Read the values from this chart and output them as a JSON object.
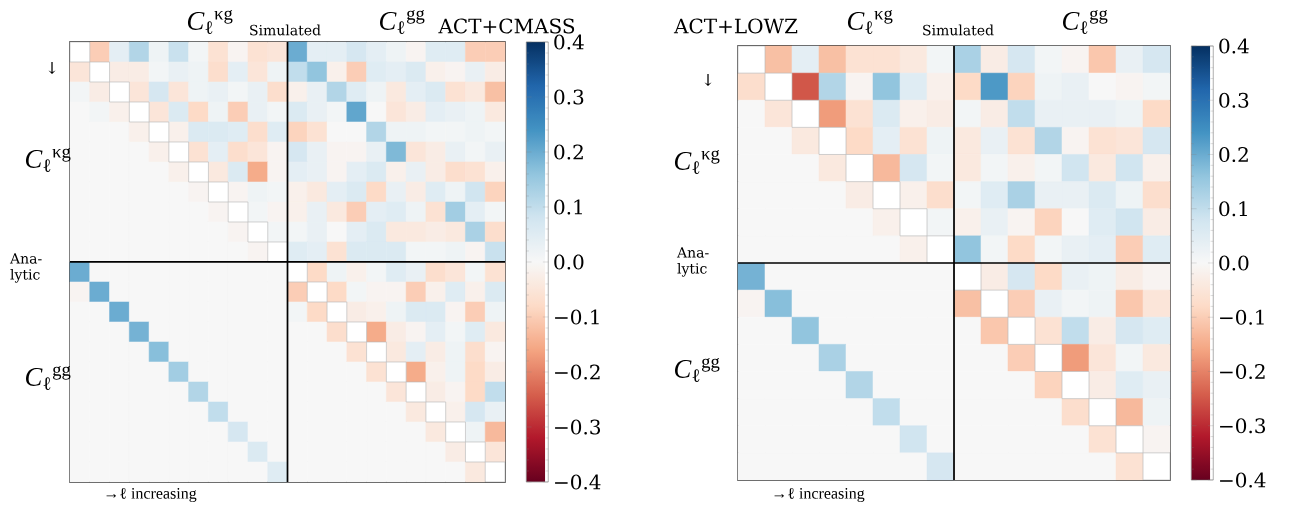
{
  "chart_data": [
    {
      "type": "heatmap",
      "title": "ACT+CMASS",
      "annotations": [
        "*C*$_{ℓ}$$^{κg}$",
        "Simulated",
        "*C*$_{ℓ}$$^{gg}$",
        "↓",
        "*C*$_{ℓ}$$^{κg}$",
        "Ana-lytic",
        "*C*$_{ℓ}$$^{gg}$",
        "→ℓ increasing"
      ],
      "categories": [
        null,
        null,
        null,
        null,
        null,
        null,
        null,
        null,
        null,
        null,
        null,
        null,
        null,
        null,
        null,
        null,
        null,
        null,
        null,
        null,
        null,
        null
      ],
      "y_categories": [
        null,
        null,
        null,
        null,
        null,
        null,
        null,
        null,
        null,
        null,
        null,
        null,
        null,
        null,
        null,
        null,
        null,
        null,
        null,
        null,
        null,
        null
      ],
      "cells": [
        [
          null,
          -0.1,
          0.04,
          0.12,
          0.02,
          0.09,
          0.01,
          -0.06,
          -0.01,
          -0.06,
          -0.05,
          0.2,
          0.04,
          0.04,
          0.07,
          0.04,
          0.02,
          -0.01,
          0.05,
          0.05,
          -0.1,
          -0.1
        ],
        [
          -0.05,
          null,
          -0.03,
          -0.03,
          0.01,
          0.03,
          0.02,
          -0.07,
          0.04,
          -0.05,
          0.02,
          0.1,
          0.16,
          -0.02,
          -0.1,
          0.05,
          0.04,
          0.06,
          -0.02,
          -0.01,
          0.03,
          -0.03
        ],
        [
          0.01,
          -0.03,
          null,
          -0.05,
          0.07,
          -0.05,
          0.02,
          0.03,
          0.01,
          0.03,
          -0.07,
          -0.02,
          0.03,
          0.12,
          0.05,
          0.02,
          -0.04,
          0.04,
          0.06,
          -0.06,
          -0.04,
          -0.12
        ],
        [
          0,
          0.01,
          -0.02,
          null,
          -0.05,
          0.06,
          -0.08,
          0.02,
          -0.1,
          0.03,
          0.01,
          0.06,
          0.03,
          0.01,
          0.21,
          0,
          -0.05,
          -0.03,
          0.04,
          0.03,
          0.02,
          -0.04
        ],
        [
          0,
          0,
          0,
          -0.02,
          null,
          -0.02,
          0.06,
          0.06,
          0.05,
          -0.07,
          0.05,
          -0.09,
          -0.06,
          0,
          0,
          0.12,
          0.02,
          0.02,
          0.01,
          0.01,
          0.02,
          0.01
        ],
        [
          0,
          0,
          0,
          0,
          -0.02,
          null,
          -0.06,
          0.04,
          -0.07,
          -0.05,
          -0.01,
          0.07,
          0.03,
          -0.01,
          -0.01,
          0.03,
          0.18,
          -0.05,
          -0.03,
          0.03,
          0.01,
          0.03
        ],
        [
          0,
          0,
          0,
          0,
          0,
          -0.02,
          null,
          -0.04,
          0.06,
          -0.15,
          -0.01,
          0.04,
          0.03,
          -0.01,
          0.04,
          0.06,
          -0.02,
          0.03,
          -0.03,
          -0.07,
          -0.06,
          -0.02
        ],
        [
          0,
          0,
          0,
          0,
          0,
          0,
          -0.01,
          null,
          -0.01,
          0.02,
          0.01,
          -0.02,
          -0.04,
          0.04,
          0.06,
          -0.08,
          0.03,
          -0.03,
          0.05,
          0.02,
          0.08,
          -0.09
        ],
        [
          0,
          0,
          0,
          0,
          0,
          0,
          0,
          -0.01,
          null,
          0.01,
          -0.01,
          -0.02,
          0.03,
          -0.04,
          -0.1,
          0.04,
          0.05,
          0.02,
          -0.06,
          0.14,
          0.04,
          0.01
        ],
        [
          0,
          0,
          0,
          0,
          0,
          0,
          0,
          0,
          -0.01,
          null,
          0.01,
          0.01,
          0.03,
          0,
          0.04,
          0.06,
          -0.04,
          -0.04,
          -0.03,
          -0.04,
          0.13,
          -0.07
        ],
        [
          0,
          0,
          0,
          0,
          0,
          0,
          0,
          0,
          0,
          -0.01,
          null,
          0.05,
          0.04,
          -0.06,
          0.06,
          0.06,
          0.06,
          0.01,
          0.01,
          0.02,
          -0.01,
          0.09
        ],
        [
          0.2,
          0,
          0,
          0,
          0,
          0,
          0,
          0,
          0,
          0,
          0,
          null,
          -0.08,
          0.02,
          -0.02,
          0.01,
          0.05,
          0.03,
          -0.07,
          -0.05,
          0.01,
          -0.06
        ],
        [
          -0.01,
          0.2,
          0,
          0,
          0,
          0,
          0,
          0,
          0,
          0,
          0,
          -0.1,
          null,
          -0.08,
          0.01,
          -0.01,
          -0.01,
          -0.1,
          -0.02,
          0.05,
          -0.02,
          0.06
        ],
        [
          0,
          0,
          0.2,
          0,
          0,
          0,
          0,
          0,
          0,
          0,
          0,
          0.01,
          -0.08,
          null,
          -0.03,
          -0.02,
          0.02,
          0.06,
          0.06,
          -0.01,
          -0.1,
          0.02
        ],
        [
          0,
          0,
          0,
          0.19,
          0,
          0,
          0,
          0,
          0,
          0,
          0,
          0,
          0,
          -0.07,
          null,
          -0.15,
          -0.03,
          -0.01,
          0.04,
          0.01,
          0.05,
          -0.04
        ],
        [
          0,
          0,
          0,
          0,
          0.17,
          0,
          0,
          0,
          0,
          0,
          0,
          0,
          0,
          0,
          -0.06,
          null,
          -0.04,
          0.04,
          -0.03,
          0.02,
          -0.07,
          -0.01
        ],
        [
          0,
          0,
          0,
          0,
          0,
          0.14,
          0,
          0,
          0,
          0,
          0,
          0,
          0,
          0,
          0,
          -0.06,
          null,
          -0.15,
          -0.02,
          0.02,
          -0.08,
          -0.03
        ],
        [
          0,
          0,
          0,
          0,
          0,
          0,
          0.12,
          0,
          0,
          0,
          0,
          0,
          0,
          0,
          0,
          0,
          -0.05,
          null,
          -0.03,
          -0.01,
          -0.08,
          0.1
        ],
        [
          0,
          0,
          0,
          0,
          0,
          0,
          0,
          0.1,
          0,
          0,
          0,
          0,
          0,
          0,
          0,
          0,
          0,
          -0.04,
          null,
          -0.02,
          0.07,
          0.03
        ],
        [
          0,
          0,
          0,
          0,
          0,
          0,
          0,
          0,
          0.07,
          0,
          0,
          0,
          0,
          0,
          0,
          0,
          0,
          0,
          -0.04,
          null,
          0.02,
          -0.13
        ],
        [
          0,
          0,
          0,
          0,
          0,
          0,
          0,
          0,
          0,
          0.06,
          0,
          0,
          0,
          0,
          0,
          0,
          0,
          0,
          0,
          -0.03,
          null,
          -0.05
        ],
        [
          0,
          0,
          0,
          0,
          0,
          0,
          0,
          0,
          0,
          0,
          0.05,
          0,
          0,
          0,
          0,
          0,
          0,
          0,
          0,
          0,
          -0.04,
          null
        ]
      ],
      "clim": [
        -0.4,
        0.4
      ],
      "cticks": [
        {
          "value": -0.4,
          "label": "−0.4"
        },
        {
          "value": -0.3,
          "label": "−0.3"
        },
        {
          "value": -0.2,
          "label": "−0.2"
        },
        {
          "value": -0.1,
          "label": "−0.1"
        },
        {
          "value": 0,
          "label": "0.0"
        },
        {
          "value": 0.1,
          "label": "0.1"
        },
        {
          "value": 0.2,
          "label": "0.2"
        },
        {
          "value": 0.3,
          "label": "0.3"
        },
        {
          "value": 0.4,
          "label": "0.4"
        }
      ]
    },
    {
      "type": "heatmap",
      "title": "ACT+LOWZ",
      "annotations": [
        "*C*$_{ℓ}$$^{κg}$",
        "Simulated",
        "*C*$_{ℓ}$$^{gg}$",
        "↓",
        "*C*$_{ℓ}$$^{κg}$",
        "Ana-lytic",
        "*C*$_{ℓ}$$^{gg}$",
        "→ℓ increasing"
      ],
      "categories": [
        null,
        null,
        null,
        null,
        null,
        null,
        null,
        null,
        null,
        null,
        null,
        null,
        null,
        null,
        null,
        null
      ],
      "y_categories": [
        null,
        null,
        null,
        null,
        null,
        null,
        null,
        null,
        null,
        null,
        null,
        null,
        null,
        null,
        null,
        null
      ],
      "cells": [
        [
          null,
          -0.12,
          0.04,
          -0.12,
          -0.06,
          -0.06,
          -0.04,
          0.01,
          0.13,
          -0.03,
          0.07,
          0.01,
          -0.01,
          -0.11,
          0.03,
          0.07
        ],
        [
          -0.07,
          null,
          -0.25,
          0.12,
          -0.01,
          0.16,
          0.05,
          -0.02,
          -0.08,
          0.23,
          -0.09,
          0.02,
          0.03,
          0,
          -0.01,
          0.01
        ],
        [
          0,
          -0.05,
          null,
          -0.17,
          -0.06,
          0.06,
          -0.02,
          -0.03,
          0.01,
          -0.03,
          0.1,
          0.03,
          0.03,
          0.03,
          0.02,
          -0.08
        ],
        [
          0,
          0,
          -0.04,
          null,
          -0.08,
          0.04,
          -0.06,
          0.02,
          -0.04,
          0.03,
          -0.06,
          0.12,
          -0.01,
          -0.06,
          -0.05,
          0.07
        ],
        [
          0,
          0,
          0,
          -0.04,
          null,
          -0.13,
          0.07,
          0.01,
          -0.04,
          0.01,
          -0.02,
          0.01,
          0.08,
          -0.04,
          0.08,
          -0.02
        ],
        [
          0,
          0,
          0,
          0,
          -0.03,
          null,
          -0.02,
          -0.07,
          0.01,
          0.05,
          0.13,
          0.03,
          0.03,
          0.06,
          0.02,
          -0.07
        ],
        [
          0,
          0,
          0,
          0,
          0,
          -0.02,
          null,
          0.01,
          -0.02,
          0.03,
          -0.01,
          -0.09,
          0,
          0.05,
          0.08,
          -0.03
        ],
        [
          0,
          0,
          0,
          0,
          0,
          0,
          -0.02,
          null,
          0.16,
          0.01,
          -0.08,
          0.01,
          0.03,
          0.04,
          -0.1,
          0.05
        ],
        [
          0.19,
          0,
          0,
          0,
          0,
          0,
          0,
          0,
          null,
          -0.03,
          0.07,
          -0.08,
          0.03,
          0.02,
          -0.03,
          -0.01
        ],
        [
          -0.01,
          0.17,
          0,
          0,
          0,
          0,
          0,
          0,
          -0.12,
          null,
          -0.1,
          0.03,
          0.01,
          0.02,
          -0.11,
          -0.05
        ],
        [
          0,
          0,
          0.16,
          0,
          0,
          0,
          0,
          0,
          0,
          -0.11,
          null,
          -0.06,
          0.1,
          -0.03,
          0.07,
          0.05
        ],
        [
          0,
          0,
          0,
          0.13,
          0,
          0,
          0,
          0,
          0,
          0,
          -0.1,
          null,
          -0.17,
          -0.05,
          0.01,
          -0.04
        ],
        [
          0,
          0,
          0,
          0,
          0.12,
          0,
          0,
          0,
          0,
          0,
          0,
          -0.09,
          null,
          -0.03,
          0.05,
          0.03
        ],
        [
          0,
          0,
          0,
          0,
          0,
          0.1,
          0,
          0,
          0,
          0,
          0,
          0,
          -0.07,
          null,
          -0.13,
          0.02
        ],
        [
          0,
          0,
          0,
          0,
          0,
          0,
          0.08,
          0,
          0,
          0,
          0,
          0,
          0,
          -0.06,
          null,
          -0.01
        ],
        [
          0,
          0,
          0,
          0,
          0,
          0,
          0,
          0.07,
          0,
          0,
          0,
          0,
          0,
          0,
          -0.06,
          null
        ]
      ],
      "clim": [
        -0.4,
        0.4
      ],
      "cticks": [
        {
          "value": -0.4,
          "label": "−0.4"
        },
        {
          "value": -0.3,
          "label": "−0.3"
        },
        {
          "value": -0.2,
          "label": "−0.2"
        },
        {
          "value": -0.1,
          "label": "−0.1"
        },
        {
          "value": 0,
          "label": "0.0"
        },
        {
          "value": 0.1,
          "label": "0.1"
        },
        {
          "value": 0.2,
          "label": "0.2"
        },
        {
          "value": 0.3,
          "label": "0.3"
        },
        {
          "value": 0.4,
          "label": "0.4"
        }
      ]
    }
  ]
}
